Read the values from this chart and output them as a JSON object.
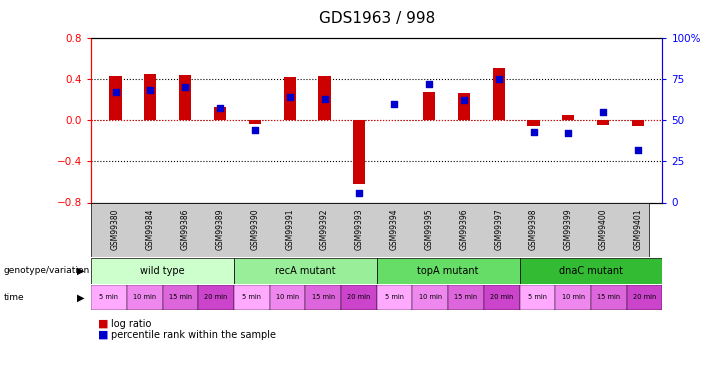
{
  "title": "GDS1963 / 998",
  "samples": [
    "GSM99380",
    "GSM99384",
    "GSM99386",
    "GSM99389",
    "GSM99390",
    "GSM99391",
    "GSM99392",
    "GSM99393",
    "GSM99394",
    "GSM99395",
    "GSM99396",
    "GSM99397",
    "GSM99398",
    "GSM99399",
    "GSM99400",
    "GSM99401"
  ],
  "log_ratio": [
    0.43,
    0.45,
    0.44,
    0.13,
    -0.04,
    0.42,
    0.43,
    -0.62,
    0.0,
    0.27,
    0.26,
    0.5,
    -0.06,
    0.05,
    -0.05,
    -0.06
  ],
  "percentile": [
    67,
    68,
    70,
    57,
    44,
    64,
    63,
    6,
    60,
    72,
    62,
    75,
    43,
    42,
    55,
    32
  ],
  "bar_color": "#cc0000",
  "dot_color": "#0000cc",
  "ylim_left": [
    -0.8,
    0.8
  ],
  "ylim_right": [
    0,
    100
  ],
  "yticks_left": [
    -0.8,
    -0.4,
    0.0,
    0.4,
    0.8
  ],
  "yticks_right": [
    0,
    25,
    50,
    75,
    100
  ],
  "dotted_lines": [
    -0.4,
    0.0,
    0.4
  ],
  "groups": [
    {
      "label": "wild type",
      "start": 0,
      "end": 4,
      "color": "#ccffcc"
    },
    {
      "label": "recA mutant",
      "start": 4,
      "end": 8,
      "color": "#99ee99"
    },
    {
      "label": "topA mutant",
      "start": 8,
      "end": 12,
      "color": "#66dd66"
    },
    {
      "label": "dnaC mutant",
      "start": 12,
      "end": 16,
      "color": "#33bb33"
    }
  ],
  "time_labels": [
    "5 min",
    "10 min",
    "15 min",
    "20 min",
    "5 min",
    "10 min",
    "15 min",
    "20 min",
    "5 min",
    "10 min",
    "15 min",
    "20 min",
    "5 min",
    "10 min",
    "15 min",
    "20 min"
  ],
  "time_colors": [
    "#ffaaff",
    "#ee88ee",
    "#dd66dd",
    "#cc44cc",
    "#ffaaff",
    "#ee88ee",
    "#dd66dd",
    "#cc44cc",
    "#ffaaff",
    "#ee88ee",
    "#dd66dd",
    "#cc44cc",
    "#ffaaff",
    "#ee88ee",
    "#dd66dd",
    "#cc44cc"
  ],
  "geno_label": "genotype/variation",
  "time_label": "time",
  "legend_log_ratio": "log ratio",
  "legend_percentile": "percentile rank within the sample",
  "bar_width": 0.35
}
